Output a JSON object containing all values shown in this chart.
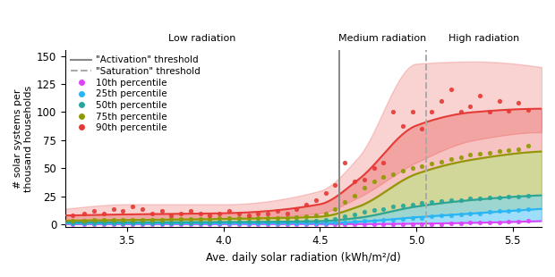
{
  "xlabel": "Ave. daily solar radiation (kWh/m²/d)",
  "ylabel": "# solar systems per\nthousand households",
  "xlim": [
    3.18,
    5.65
  ],
  "ylim": [
    -2,
    155
  ],
  "yticks": [
    0,
    25,
    50,
    75,
    100,
    125,
    150
  ],
  "xticks": [
    3.5,
    4.0,
    4.5,
    5.0,
    5.5
  ],
  "activation_x": 4.6,
  "saturation_x": 5.05,
  "low_rad_label": "Low radiation",
  "med_rad_label": "Medium radiation",
  "high_rad_label": "High radiation",
  "percentiles": {
    "p10": {
      "color": "#e040fb",
      "label": "10th percentile",
      "scatter_x": [
        3.22,
        3.28,
        3.33,
        3.38,
        3.43,
        3.48,
        3.53,
        3.58,
        3.63,
        3.68,
        3.73,
        3.78,
        3.83,
        3.88,
        3.93,
        3.98,
        4.03,
        4.08,
        4.13,
        4.18,
        4.23,
        4.28,
        4.33,
        4.38,
        4.43,
        4.48,
        4.53,
        4.58,
        4.63,
        4.68,
        4.73,
        4.78,
        4.83,
        4.88,
        4.93,
        4.98,
        5.03,
        5.08,
        5.13,
        5.18,
        5.23,
        5.28,
        5.33,
        5.38,
        5.43,
        5.48,
        5.53,
        5.58
      ],
      "scatter_y": [
        0.3,
        0.3,
        0.3,
        0.3,
        0.3,
        0.3,
        0.3,
        0.3,
        0.3,
        0.3,
        0.3,
        0.3,
        0.3,
        0.3,
        0.3,
        0.3,
        0.3,
        0.3,
        0.3,
        0.3,
        0.3,
        0.3,
        0.3,
        0.3,
        0.3,
        0.3,
        0.3,
        0.3,
        0.3,
        0.3,
        0.3,
        0.3,
        0.3,
        0.3,
        0.3,
        0.3,
        0.5,
        0.5,
        0.5,
        1.0,
        1.0,
        1.5,
        1.5,
        2.0,
        2.0,
        2.5,
        2.5,
        3.0
      ],
      "curve_knots_x": [
        3.18,
        3.5,
        4.0,
        4.5,
        4.7,
        5.0,
        5.3,
        5.65
      ],
      "curve_knots_y": [
        0.3,
        0.3,
        0.3,
        0.3,
        0.3,
        0.7,
        1.5,
        3.0
      ]
    },
    "p25": {
      "color": "#29b6f6",
      "label": "25th percentile",
      "scatter_x": [
        3.22,
        3.28,
        3.33,
        3.38,
        3.43,
        3.48,
        3.53,
        3.58,
        3.63,
        3.68,
        3.73,
        3.78,
        3.83,
        3.88,
        3.93,
        3.98,
        4.03,
        4.08,
        4.13,
        4.18,
        4.23,
        4.28,
        4.33,
        4.38,
        4.43,
        4.48,
        4.53,
        4.58,
        4.63,
        4.68,
        4.73,
        4.78,
        4.83,
        4.88,
        4.93,
        4.98,
        5.03,
        5.08,
        5.13,
        5.18,
        5.23,
        5.28,
        5.33,
        5.38,
        5.43,
        5.48,
        5.53,
        5.58
      ],
      "scatter_y": [
        1.0,
        1.0,
        1.0,
        1.0,
        1.0,
        1.0,
        1.0,
        1.0,
        1.0,
        1.0,
        1.0,
        1.0,
        1.0,
        1.0,
        1.0,
        1.0,
        1.0,
        1.0,
        1.0,
        1.0,
        1.0,
        1.0,
        1.0,
        1.0,
        1.0,
        1.0,
        1.0,
        1.5,
        2.0,
        2.5,
        3.0,
        3.5,
        4.0,
        4.5,
        5.0,
        5.5,
        6.0,
        7.0,
        8.0,
        8.0,
        9.0,
        10.0,
        10.0,
        11.0,
        12.0,
        12.0,
        13.0,
        14.0
      ],
      "curve_knots_x": [
        3.18,
        3.5,
        4.0,
        4.5,
        4.7,
        5.0,
        5.3,
        5.65
      ],
      "curve_knots_y": [
        0.8,
        0.9,
        1.0,
        1.2,
        2.5,
        6.5,
        10.0,
        14.0
      ]
    },
    "p50": {
      "color": "#26a69a",
      "label": "50th percentile",
      "scatter_x": [
        3.22,
        3.28,
        3.33,
        3.38,
        3.43,
        3.48,
        3.53,
        3.58,
        3.63,
        3.68,
        3.73,
        3.78,
        3.83,
        3.88,
        3.93,
        3.98,
        4.03,
        4.08,
        4.13,
        4.18,
        4.23,
        4.28,
        4.33,
        4.38,
        4.43,
        4.48,
        4.53,
        4.58,
        4.63,
        4.68,
        4.73,
        4.78,
        4.83,
        4.88,
        4.93,
        4.98,
        5.03,
        5.08,
        5.13,
        5.18,
        5.23,
        5.28,
        5.33,
        5.38,
        5.43,
        5.48,
        5.53,
        5.58
      ],
      "scatter_y": [
        2.0,
        2.0,
        2.0,
        2.0,
        2.0,
        2.0,
        2.0,
        2.0,
        2.0,
        2.0,
        2.0,
        2.0,
        2.0,
        2.0,
        2.0,
        2.5,
        2.5,
        2.5,
        2.5,
        2.5,
        2.5,
        2.5,
        2.5,
        3.0,
        3.0,
        3.5,
        4.0,
        5.0,
        7.0,
        9.0,
        11.0,
        13.0,
        14.0,
        16.0,
        17.0,
        18.0,
        19.0,
        20.0,
        21.0,
        22.0,
        22.0,
        23.0,
        23.0,
        24.0,
        24.0,
        25.0,
        25.0,
        26.0
      ],
      "curve_knots_x": [
        3.18,
        3.5,
        4.0,
        4.5,
        4.7,
        5.0,
        5.3,
        5.65
      ],
      "curve_knots_y": [
        1.8,
        2.0,
        2.2,
        3.0,
        6.0,
        16.0,
        22.0,
        26.0
      ]
    },
    "p75": {
      "color": "#8d9a00",
      "label": "75th percentile",
      "scatter_x": [
        3.22,
        3.28,
        3.33,
        3.38,
        3.43,
        3.48,
        3.53,
        3.58,
        3.63,
        3.68,
        3.73,
        3.78,
        3.83,
        3.88,
        3.93,
        3.98,
        4.03,
        4.08,
        4.13,
        4.18,
        4.23,
        4.28,
        4.33,
        4.38,
        4.43,
        4.48,
        4.53,
        4.58,
        4.63,
        4.68,
        4.73,
        4.78,
        4.83,
        4.88,
        4.93,
        4.98,
        5.03,
        5.08,
        5.13,
        5.18,
        5.23,
        5.28,
        5.33,
        5.38,
        5.43,
        5.48,
        5.53,
        5.58
      ],
      "scatter_y": [
        3.5,
        3.5,
        4.0,
        4.0,
        4.0,
        4.0,
        4.5,
        4.5,
        4.5,
        4.5,
        5.0,
        5.0,
        5.0,
        5.0,
        5.0,
        5.5,
        5.5,
        5.5,
        5.5,
        5.5,
        5.5,
        6.0,
        6.0,
        6.5,
        7.0,
        8.0,
        10.0,
        14.0,
        20.0,
        26.0,
        33.0,
        38.0,
        42.0,
        45.0,
        48.0,
        50.0,
        52.0,
        54.0,
        56.0,
        58.0,
        60.0,
        62.0,
        63.0,
        64.0,
        65.0,
        66.0,
        67.0,
        70.0
      ],
      "curve_knots_x": [
        3.18,
        3.5,
        4.0,
        4.5,
        4.7,
        5.0,
        5.3,
        5.65
      ],
      "curve_knots_y": [
        3.5,
        4.0,
        5.0,
        7.0,
        16.0,
        45.0,
        58.0,
        65.0
      ]
    },
    "p90": {
      "color": "#e53935",
      "label": "90th percentile",
      "scatter_x": [
        3.22,
        3.28,
        3.33,
        3.38,
        3.43,
        3.48,
        3.53,
        3.58,
        3.63,
        3.68,
        3.73,
        3.78,
        3.83,
        3.88,
        3.93,
        3.98,
        4.03,
        4.08,
        4.13,
        4.18,
        4.23,
        4.28,
        4.33,
        4.38,
        4.43,
        4.48,
        4.53,
        4.58,
        4.63,
        4.68,
        4.73,
        4.78,
        4.83,
        4.88,
        4.93,
        4.98,
        5.03,
        5.08,
        5.13,
        5.18,
        5.23,
        5.28,
        5.33,
        5.38,
        5.43,
        5.48,
        5.53,
        5.58
      ],
      "scatter_y": [
        8.0,
        10.0,
        12.0,
        10.0,
        14.0,
        12.0,
        16.0,
        14.0,
        10.0,
        12.0,
        8.0,
        10.0,
        12.0,
        10.0,
        8.0,
        10.0,
        12.0,
        10.0,
        8.0,
        10.0,
        10.0,
        12.0,
        10.0,
        14.0,
        18.0,
        22.0,
        28.0,
        35.0,
        55.0,
        38.0,
        40.0,
        50.0,
        55.0,
        100.0,
        88.0,
        100.0,
        85.0,
        100.0,
        110.0,
        120.0,
        100.0,
        105.0,
        115.0,
        100.0,
        110.0,
        101.0,
        108.0,
        102.0
      ],
      "curve_knots_x": [
        3.18,
        3.5,
        4.0,
        4.5,
        4.7,
        5.0,
        5.3,
        5.65
      ],
      "curve_knots_y": [
        8.0,
        9.0,
        10.0,
        18.0,
        40.0,
        88.0,
        100.0,
        103.0
      ],
      "band_lower_y": [
        3.0,
        4.0,
        5.0,
        10.0,
        24.0,
        55.0,
        75.0,
        82.0
      ],
      "band_upper_y": [
        14.0,
        18.0,
        18.0,
        30.0,
        60.0,
        143.0,
        145.0,
        140.0
      ]
    }
  }
}
